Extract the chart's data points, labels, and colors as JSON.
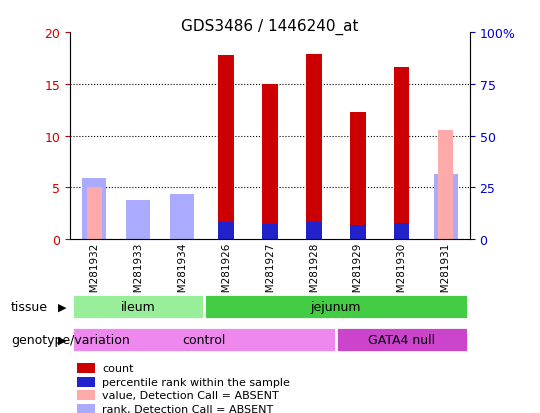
{
  "title": "GDS3486 / 1446240_at",
  "samples": [
    "GSM281932",
    "GSM281933",
    "GSM281934",
    "GSM281926",
    "GSM281927",
    "GSM281928",
    "GSM281929",
    "GSM281930",
    "GSM281931"
  ],
  "count_values": [
    null,
    null,
    null,
    17.8,
    15.0,
    17.9,
    12.3,
    16.6,
    null
  ],
  "rank_values": [
    null,
    null,
    null,
    8.1,
    7.4,
    8.1,
    6.6,
    7.6,
    null
  ],
  "absent_value": [
    5.0,
    null,
    null,
    null,
    null,
    null,
    null,
    null,
    10.5
  ],
  "absent_rank": [
    5.9,
    3.8,
    4.4,
    null,
    null,
    null,
    null,
    null,
    6.3
  ],
  "ylim_left": [
    0,
    20
  ],
  "ylim_right": [
    0,
    100
  ],
  "yticks_left": [
    0,
    5,
    10,
    15,
    20
  ],
  "yticks_right": [
    0,
    25,
    50,
    75,
    100
  ],
  "yticklabels_right": [
    "0",
    "25",
    "50",
    "75",
    "100%"
  ],
  "count_color": "#cc0000",
  "rank_color": "#2222cc",
  "absent_value_color": "#ffaaaa",
  "absent_rank_color": "#aaaaff",
  "tissue_labels": [
    {
      "label": "ileum",
      "start": 0,
      "end": 3,
      "color": "#99ee99"
    },
    {
      "label": "jejunum",
      "start": 3,
      "end": 9,
      "color": "#44cc44"
    }
  ],
  "genotype_labels": [
    {
      "label": "control",
      "start": 0,
      "end": 6,
      "color": "#ee88ee"
    },
    {
      "label": "GATA4 null",
      "start": 6,
      "end": 9,
      "color": "#cc44cc"
    }
  ],
  "legend_items": [
    {
      "label": "count",
      "color": "#cc0000"
    },
    {
      "label": "percentile rank within the sample",
      "color": "#2222cc"
    },
    {
      "label": "value, Detection Call = ABSENT",
      "color": "#ffaaaa"
    },
    {
      "label": "rank, Detection Call = ABSENT",
      "color": "#aaaaff"
    }
  ],
  "ylabel_left_color": "#cc0000",
  "ylabel_right_color": "#0000cc"
}
